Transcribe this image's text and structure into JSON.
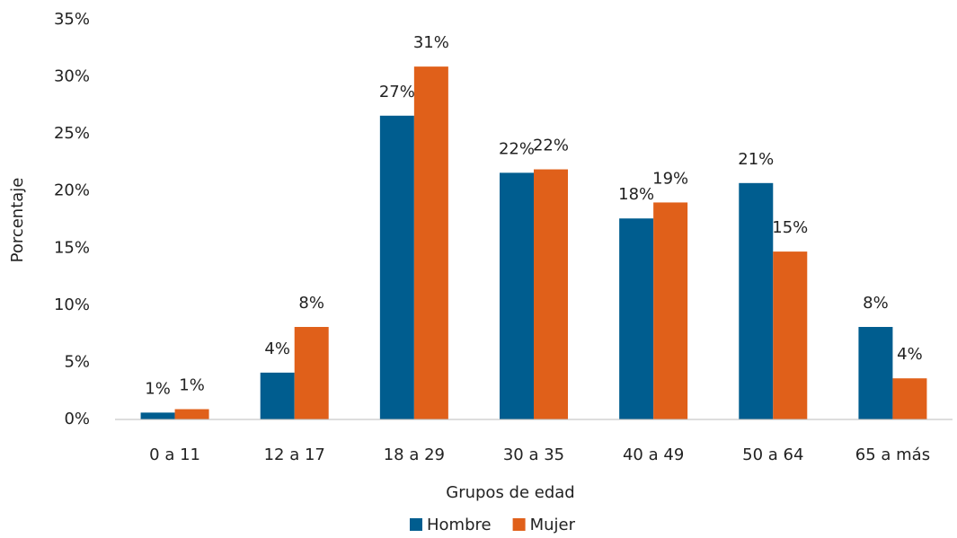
{
  "chart_data": {
    "type": "bar",
    "xlabel": "Grupos de edad",
    "ylabel": "Porcentaje",
    "categories": [
      "0 a 11",
      "12 a 17",
      "18 a 29",
      "30 a 35",
      "40 a 49",
      "50 a 64",
      "65 a más"
    ],
    "series": [
      {
        "name": "Hombre",
        "color": "#005d8f",
        "values": [
          0.6,
          4.1,
          26.6,
          21.6,
          17.6,
          20.7,
          8.1
        ],
        "value_labels": [
          "1%",
          "4%",
          "27%",
          "22%",
          "18%",
          "21%",
          "8%"
        ]
      },
      {
        "name": "Mujer",
        "color": "#e0601a",
        "values": [
          0.9,
          8.1,
          30.9,
          21.9,
          19.0,
          14.7,
          3.6
        ],
        "value_labels": [
          "1%",
          "8%",
          "31%",
          "22%",
          "19%",
          "15%",
          "4%"
        ]
      }
    ],
    "ylim": [
      0,
      35
    ],
    "yticks": [
      {
        "value": 0,
        "label": "0%"
      },
      {
        "value": 5,
        "label": "5%"
      },
      {
        "value": 10,
        "label": "10%"
      },
      {
        "value": 15,
        "label": "15%"
      },
      {
        "value": 20,
        "label": "20%"
      },
      {
        "value": 25,
        "label": "25%"
      },
      {
        "value": 30,
        "label": "30%"
      },
      {
        "value": 35,
        "label": "35%"
      }
    ],
    "grid": false,
    "legend": "bottom"
  }
}
